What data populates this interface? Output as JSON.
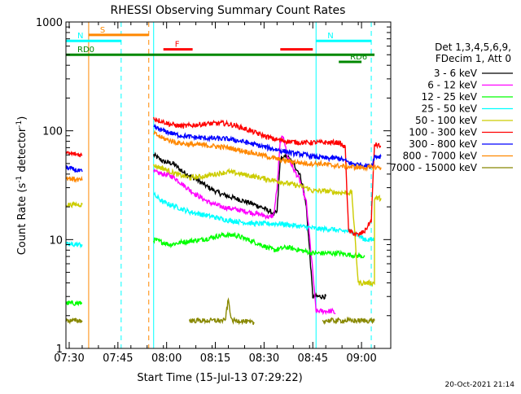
{
  "chart_data": {
    "type": "line",
    "title": "RHESSI Observing Summary Count Rates",
    "xlabel": "Start Time (15-Jul-13 07:29:22)",
    "ylabel": "Count Rate (s",
    "ylabel_sup": "-1",
    "ylabel_tail": " detector",
    "ylabel_close": ")",
    "yscale": "log",
    "ylim": [
      1,
      1000
    ],
    "xlim_minutes": [
      0,
      100
    ],
    "x_ticks": [
      {
        "label": "07:30",
        "t": 1
      },
      {
        "label": "07:45",
        "t": 16
      },
      {
        "label": "08:00",
        "t": 31
      },
      {
        "label": "08:15",
        "t": 46
      },
      {
        "label": "08:30",
        "t": 61
      },
      {
        "label": "08:45",
        "t": 76
      },
      {
        "label": "09:00",
        "t": 91
      }
    ],
    "y_ticks": [
      {
        "label": "1",
        "v": 1
      },
      {
        "label": "10",
        "v": 10
      },
      {
        "label": "100",
        "v": 100
      },
      {
        "label": "1000",
        "v": 1000
      }
    ],
    "legend": {
      "header_lines": [
        "Det 1,3,4,5,6,9,",
        "FDecim 1, Att 0"
      ],
      "position": "right"
    },
    "series": [
      {
        "name": "3 - 6 keV",
        "color": "#000000",
        "segments": [
          [
            [
              27,
              60
            ],
            [
              30,
              52
            ],
            [
              33,
              50
            ],
            [
              36,
              42
            ],
            [
              40,
              36
            ],
            [
              44,
              30
            ],
            [
              48,
              26
            ],
            [
              52,
              24
            ],
            [
              56,
              22
            ],
            [
              60,
              20
            ],
            [
              63,
              18
            ],
            [
              64,
              17
            ],
            [
              65,
              18
            ],
            [
              66,
              55
            ],
            [
              68,
              58
            ],
            [
              70,
              50
            ],
            [
              72,
              40
            ],
            [
              73,
              30
            ],
            [
              74,
              20
            ],
            [
              75,
              8
            ],
            [
              76,
              3
            ],
            [
              77,
              3
            ],
            [
              78,
              3
            ],
            [
              79,
              3
            ],
            [
              80,
              3
            ]
          ]
        ]
      },
      {
        "name": "6 - 12 keV",
        "color": "#ff00ff",
        "segments": [
          [
            [
              27,
              42
            ],
            [
              30,
              40
            ],
            [
              33,
              38
            ],
            [
              36,
              32
            ],
            [
              40,
              26
            ],
            [
              44,
              22
            ],
            [
              48,
              20
            ],
            [
              52,
              19
            ],
            [
              56,
              18
            ],
            [
              60,
              17
            ],
            [
              63,
              16
            ],
            [
              64,
              17
            ],
            [
              65,
              30
            ],
            [
              66,
              80
            ],
            [
              67,
              90
            ],
            [
              68,
              60
            ],
            [
              70,
              45
            ],
            [
              72,
              35
            ],
            [
              74,
              22
            ],
            [
              76,
              5
            ],
            [
              77,
              2.2
            ],
            [
              82,
              2.2
            ],
            [
              83,
              2.1
            ]
          ]
        ]
      },
      {
        "name": "12 - 25 keV",
        "color": "#00ff00",
        "segments": [
          [
            [
              0,
              2.6
            ],
            [
              5,
              2.6
            ]
          ],
          [
            [
              27,
              10
            ],
            [
              32,
              9
            ],
            [
              36,
              9.5
            ],
            [
              42,
              10
            ],
            [
              48,
              11
            ],
            [
              52,
              11
            ],
            [
              56,
              10
            ],
            [
              60,
              9
            ],
            [
              64,
              8
            ],
            [
              68,
              8.5
            ],
            [
              72,
              8
            ],
            [
              76,
              7.5
            ],
            [
              80,
              7.5
            ],
            [
              84,
              7.5
            ],
            [
              88,
              7.2
            ],
            [
              92,
              7
            ]
          ]
        ]
      },
      {
        "name": "25 - 50 keV",
        "color": "#00ffff",
        "segments": [
          [
            [
              0,
              9
            ],
            [
              5,
              9
            ]
          ],
          [
            [
              27,
              26
            ],
            [
              30,
              22
            ],
            [
              34,
              20
            ],
            [
              38,
              18
            ],
            [
              42,
              17
            ],
            [
              46,
              16
            ],
            [
              50,
              15
            ],
            [
              54,
              14.5
            ],
            [
              58,
              14
            ],
            [
              62,
              14
            ],
            [
              66,
              14
            ],
            [
              70,
              13.5
            ],
            [
              74,
              13
            ],
            [
              78,
              12.5
            ],
            [
              82,
              12.5
            ],
            [
              84,
              12
            ],
            [
              88,
              12
            ],
            [
              92,
              10
            ],
            [
              95,
              10
            ]
          ]
        ]
      },
      {
        "name": "50 - 100 keV",
        "color": "#cccc00",
        "segments": [
          [
            [
              0,
              21
            ],
            [
              5,
              21
            ]
          ],
          [
            [
              27,
              48
            ],
            [
              30,
              45
            ],
            [
              34,
              40
            ],
            [
              38,
              37
            ],
            [
              42,
              38
            ],
            [
              46,
              40
            ],
            [
              50,
              42
            ],
            [
              54,
              40
            ],
            [
              58,
              38
            ],
            [
              62,
              36
            ],
            [
              66,
              34
            ],
            [
              70,
              32
            ],
            [
              74,
              30
            ],
            [
              76,
              28
            ],
            [
              80,
              28
            ],
            [
              84,
              27
            ],
            [
              88,
              27
            ],
            [
              90,
              4
            ],
            [
              94,
              4
            ],
            [
              95,
              4
            ],
            [
              95,
              24
            ],
            [
              97,
              24
            ]
          ]
        ]
      },
      {
        "name": "100 - 300 keV",
        "color": "#ff0000",
        "segments": [
          [
            [
              0,
              62
            ],
            [
              5,
              60
            ]
          ],
          [
            [
              27,
              130
            ],
            [
              32,
              115
            ],
            [
              36,
              110
            ],
            [
              42,
              115
            ],
            [
              48,
              118
            ],
            [
              52,
              112
            ],
            [
              56,
              102
            ],
            [
              60,
              92
            ],
            [
              64,
              84
            ],
            [
              68,
              80
            ],
            [
              72,
              78
            ],
            [
              76,
              78
            ],
            [
              80,
              78
            ],
            [
              84,
              78
            ],
            [
              86,
              70
            ],
            [
              87,
              12
            ],
            [
              90,
              11
            ],
            [
              92,
              12
            ],
            [
              94,
              15
            ],
            [
              95,
              75
            ],
            [
              97,
              72
            ]
          ]
        ]
      },
      {
        "name": "300 - 800 keV",
        "color": "#0000ff",
        "segments": [
          [
            [
              0,
              46
            ],
            [
              5,
              42
            ]
          ],
          [
            [
              27,
              108
            ],
            [
              30,
              100
            ],
            [
              34,
              92
            ],
            [
              38,
              88
            ],
            [
              42,
              86
            ],
            [
              46,
              85
            ],
            [
              50,
              84
            ],
            [
              54,
              80
            ],
            [
              58,
              75
            ],
            [
              62,
              70
            ],
            [
              66,
              66
            ],
            [
              70,
              62
            ],
            [
              74,
              60
            ],
            [
              76,
              58
            ],
            [
              80,
              56
            ],
            [
              84,
              56
            ],
            [
              88,
              50
            ],
            [
              92,
              48
            ],
            [
              94,
              47
            ],
            [
              95,
              58
            ],
            [
              97,
              58
            ]
          ]
        ]
      },
      {
        "name": "800 - 7000 keV",
        "color": "#ff8800",
        "segments": [
          [
            [
              0,
              37
            ],
            [
              5,
              35
            ]
          ],
          [
            [
              27,
              95
            ],
            [
              30,
              85
            ],
            [
              34,
              78
            ],
            [
              38,
              75
            ],
            [
              42,
              74
            ],
            [
              46,
              72
            ],
            [
              50,
              70
            ],
            [
              54,
              66
            ],
            [
              58,
              62
            ],
            [
              62,
              58
            ],
            [
              66,
              54
            ],
            [
              70,
              52
            ],
            [
              74,
              50
            ],
            [
              78,
              50
            ],
            [
              82,
              48
            ],
            [
              86,
              47
            ],
            [
              90,
              46
            ],
            [
              94,
              46
            ],
            [
              97,
              46
            ]
          ]
        ]
      },
      {
        "name": "7000 - 15000 keV",
        "color": "#888800",
        "segments": [
          [
            [
              0,
              1.8
            ],
            [
              5,
              1.8
            ]
          ],
          [
            [
              38,
              1.8
            ],
            [
              42,
              1.8
            ],
            [
              46,
              1.8
            ],
            [
              49,
              1.8
            ],
            [
              50,
              2.8
            ],
            [
              51,
              1.8
            ],
            [
              54,
              1.8
            ],
            [
              58,
              1.7
            ]
          ],
          [
            [
              79,
              1.8
            ],
            [
              84,
              1.8
            ],
            [
              88,
              1.8
            ],
            [
              92,
              1.8
            ],
            [
              95,
              1.8
            ]
          ]
        ]
      }
    ],
    "annotations": [
      {
        "label": "S",
        "color": "#ff8800",
        "t1": 7,
        "t2": 25.5,
        "v": 760
      },
      {
        "label": "N",
        "color": "#00ffff",
        "t1": 0,
        "t2": 17,
        "v": 670
      },
      {
        "label": "N",
        "color": "#00ffff",
        "t1": 77,
        "t2": 94,
        "v": 670
      },
      {
        "label": "F",
        "color": "#ff0000",
        "t1": 30,
        "t2": 39,
        "v": 560
      },
      {
        "label": "",
        "color": "#ff0000",
        "t1": 66,
        "t2": 76,
        "v": 560
      },
      {
        "label": "RD0",
        "color": "#008800",
        "t1": 0,
        "t2": 95,
        "v": 500
      },
      {
        "label": "RD6",
        "color": "#008800",
        "t1": 84,
        "t2": 91,
        "v": 430
      }
    ],
    "vlines": [
      {
        "t": 0,
        "color": "#00ffff",
        "style": "solid"
      },
      {
        "t": 7,
        "color": "#ff8800",
        "style": "solid"
      },
      {
        "t": 17,
        "color": "#00ffff",
        "style": "dashed"
      },
      {
        "t": 25.5,
        "color": "#ff8800",
        "style": "dashed"
      },
      {
        "t": 27,
        "color": "#00ffff",
        "style": "solid"
      },
      {
        "t": 77,
        "color": "#00ffff",
        "style": "solid"
      },
      {
        "t": 94,
        "color": "#00ffff",
        "style": "dashed"
      }
    ]
  },
  "footer_date": "20-Oct-2021 21:14"
}
